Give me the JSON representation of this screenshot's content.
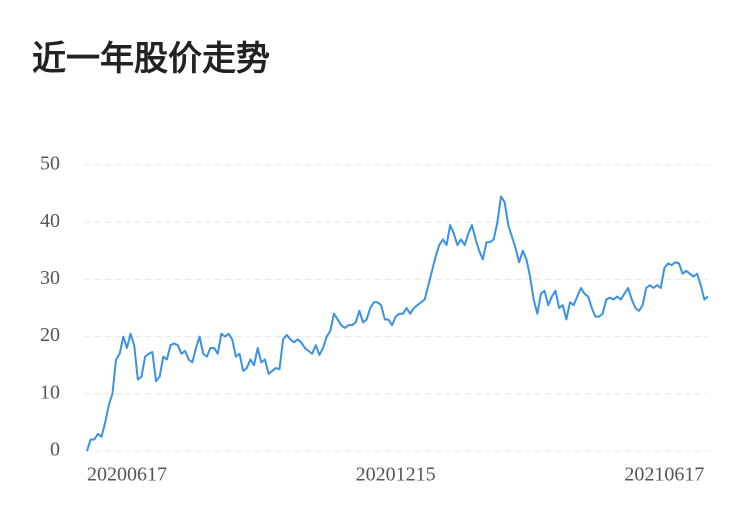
{
  "chart_data": {
    "type": "line",
    "title": "近一年股价走势",
    "categories": [
      null,
      null,
      null,
      null,
      null,
      null,
      null,
      null,
      null,
      null,
      null,
      "20200617",
      null,
      null,
      null,
      null,
      null,
      null,
      null,
      null,
      null,
      null,
      null,
      null,
      null,
      null,
      null,
      null,
      null,
      null,
      null,
      null,
      null,
      null,
      null,
      null,
      null,
      null,
      null,
      null,
      null,
      null,
      null,
      null,
      null,
      null,
      null,
      null,
      null,
      null,
      null,
      null,
      null,
      null,
      null,
      null,
      null,
      null,
      null,
      null,
      null,
      null,
      null,
      null,
      null,
      null,
      null,
      null,
      null,
      null,
      null,
      null,
      null,
      null,
      null,
      null,
      null,
      null,
      null,
      null,
      null,
      null,
      null,
      null,
      null,
      "20201215",
      null,
      null,
      null,
      null,
      null,
      null,
      null,
      null,
      null,
      null,
      null,
      null,
      null,
      null,
      null,
      null,
      null,
      null,
      null,
      null,
      null,
      null,
      null,
      null,
      null,
      null,
      null,
      null,
      null,
      null,
      null,
      null,
      null,
      null,
      null,
      null,
      null,
      null,
      null,
      null,
      null,
      null,
      null,
      null,
      null,
      null,
      null,
      null,
      null,
      null,
      null,
      null,
      null,
      null,
      null,
      null,
      null,
      null,
      null,
      null,
      null,
      null,
      null,
      null,
      null,
      null,
      null,
      null,
      null,
      null,
      null,
      null,
      null,
      "20210617",
      null,
      null,
      null,
      null,
      null,
      null,
      null,
      null,
      null,
      null,
      null,
      null
    ],
    "values": [
      0,
      2,
      2,
      3,
      2.5,
      5,
      8,
      10,
      16,
      17,
      20,
      18,
      20.5,
      18.5,
      12.5,
      13,
      16.5,
      17,
      17.3,
      12.2,
      13,
      16.5,
      16,
      18.5,
      18.8,
      18.5,
      17,
      17.5,
      16,
      15.5,
      18,
      20,
      17,
      16.5,
      18,
      18,
      17,
      20.5,
      20,
      20.5,
      19.5,
      16.5,
      17,
      14,
      14.5,
      16,
      15,
      18,
      15.5,
      16,
      13.5,
      14,
      14.5,
      14.3,
      19.5,
      20.3,
      19.5,
      19,
      19.5,
      19,
      18,
      17.5,
      17,
      18.5,
      16.8,
      18,
      20,
      21,
      24,
      23,
      22,
      21.5,
      22,
      22,
      22.5,
      24.5,
      22.5,
      23,
      25,
      26,
      26,
      25.5,
      23,
      23,
      22,
      23.5,
      24,
      24,
      25,
      24,
      25,
      25.5,
      26,
      26.5,
      29,
      31.5,
      34,
      36,
      37,
      36,
      39.5,
      38,
      36,
      37,
      36,
      38,
      39.5,
      37,
      35,
      33.5,
      36.5,
      36.5,
      37,
      40,
      44.5,
      43.5,
      39.5,
      37.5,
      35.5,
      33,
      35,
      33.5,
      30.5,
      26.5,
      24,
      27.5,
      28,
      25.5,
      27,
      28,
      25,
      25.5,
      23,
      26,
      25.5,
      27,
      28.5,
      27.5,
      27,
      25,
      23.5,
      23.5,
      24,
      26.5,
      26.8,
      26.5,
      27,
      26.5,
      27.5,
      28.5,
      26.5,
      25,
      24.5,
      25.5,
      28.5,
      29,
      28.5,
      29,
      28.5,
      32,
      32.8,
      32.5,
      33,
      32.8,
      31,
      31.5,
      31,
      30.5,
      31,
      29,
      26.5,
      27
    ],
    "color": "#3a92e0",
    "ylim": [
      0,
      50
    ],
    "yticks": [
      0,
      10,
      20,
      30,
      40,
      50
    ],
    "grid": true
  }
}
